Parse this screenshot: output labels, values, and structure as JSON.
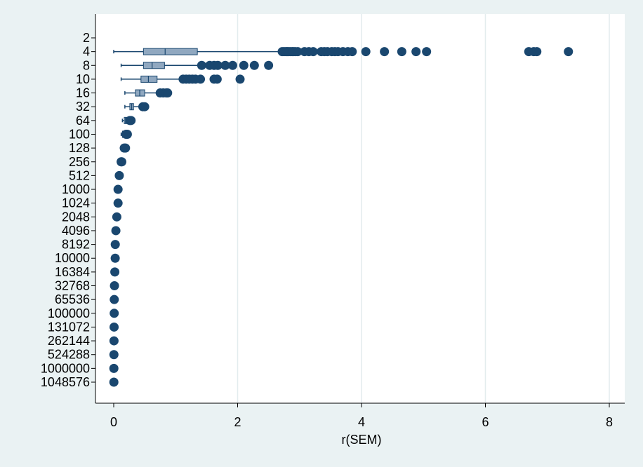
{
  "chart_data": {
    "type": "box",
    "orientation": "horizontal",
    "title": "",
    "xlabel": "r(SEM)",
    "ylabel": "",
    "xlim": [
      -0.3,
      8.3
    ],
    "xticks": [
      0,
      2,
      4,
      6,
      8
    ],
    "grid": "vertical",
    "legend": "none",
    "colors": {
      "background": "#eaf2f3",
      "plot_background": "#ffffff",
      "box_fill": "#90a8c0",
      "marker": "#1a476f",
      "grid": "#e3ecee",
      "axis": "#000000"
    },
    "categories": [
      "2",
      "4",
      "8",
      "10",
      "16",
      "32",
      "64",
      "100",
      "128",
      "256",
      "512",
      "1000",
      "1024",
      "2048",
      "4096",
      "8192",
      "10000",
      "16384",
      "32768",
      "65536",
      "100000",
      "131072",
      "262144",
      "524288",
      "1000000",
      "1048576"
    ],
    "boxes": [
      {
        "category": "2",
        "whisker_low": null,
        "q1": null,
        "median": null,
        "q3": null,
        "whisker_high": null,
        "outliers": []
      },
      {
        "category": "4",
        "whisker_low": 0.0,
        "q1": 0.48,
        "median": 0.83,
        "q3": 1.35,
        "whisker_high": 2.7,
        "outliers": [
          2.72,
          2.75,
          2.78,
          2.8,
          2.82,
          2.85,
          2.88,
          2.9,
          2.93,
          2.97,
          3.08,
          3.15,
          3.22,
          3.35,
          3.4,
          3.45,
          3.52,
          3.57,
          3.62,
          3.7,
          3.78,
          3.85,
          4.07,
          4.37,
          4.65,
          4.88,
          5.05,
          6.7,
          6.78,
          6.83,
          7.34
        ]
      },
      {
        "category": "8",
        "whisker_low": 0.12,
        "q1": 0.48,
        "median": 0.62,
        "q3": 0.82,
        "whisker_high": 1.37,
        "outliers": [
          1.42,
          1.55,
          1.62,
          1.68,
          1.8,
          1.92,
          2.1,
          2.27,
          2.5
        ]
      },
      {
        "category": "10",
        "whisker_low": 0.12,
        "q1": 0.44,
        "median": 0.56,
        "q3": 0.7,
        "whisker_high": 1.08,
        "outliers": [
          1.12,
          1.17,
          1.22,
          1.27,
          1.32,
          1.4,
          1.62,
          1.67,
          2.04
        ]
      },
      {
        "category": "16",
        "whisker_low": 0.18,
        "q1": 0.35,
        "median": 0.42,
        "q3": 0.5,
        "whisker_high": 0.72,
        "outliers": [
          0.75,
          0.8,
          0.85,
          0.87
        ]
      },
      {
        "category": "32",
        "whisker_low": 0.18,
        "q1": 0.26,
        "median": 0.29,
        "q3": 0.32,
        "whisker_high": 0.42,
        "outliers": [
          0.47,
          0.5
        ]
      },
      {
        "category": "64",
        "whisker_low": 0.14,
        "q1": 0.17,
        "median": 0.19,
        "q3": 0.21,
        "whisker_high": 0.24,
        "outliers": [
          0.26,
          0.28
        ]
      },
      {
        "category": "100",
        "whisker_low": 0.12,
        "q1": 0.14,
        "median": 0.15,
        "q3": 0.16,
        "whisker_high": 0.18,
        "outliers": [
          0.2,
          0.22
        ]
      },
      {
        "category": "128",
        "whisker_low": 0.12,
        "q1": 0.13,
        "median": 0.14,
        "q3": 0.15,
        "whisker_high": 0.16,
        "outliers": [
          0.17,
          0.19
        ]
      },
      {
        "category": "256",
        "whisker_low": 0.07,
        "q1": 0.08,
        "median": 0.09,
        "q3": 0.1,
        "whisker_high": 0.11,
        "outliers": [
          0.12,
          0.13
        ]
      },
      {
        "category": "512",
        "whisker_low": 0.06,
        "q1": 0.065,
        "median": 0.07,
        "q3": 0.075,
        "whisker_high": 0.08,
        "outliers": [
          0.09
        ]
      },
      {
        "category": "1000",
        "whisker_low": 0.04,
        "q1": 0.045,
        "median": 0.05,
        "q3": 0.055,
        "whisker_high": 0.06,
        "outliers": [
          0.07
        ]
      },
      {
        "category": "1024",
        "whisker_low": 0.04,
        "q1": 0.045,
        "median": 0.05,
        "q3": 0.055,
        "whisker_high": 0.06,
        "outliers": [
          0.07
        ]
      },
      {
        "category": "2048",
        "whisker_low": 0.025,
        "q1": 0.03,
        "median": 0.035,
        "q3": 0.04,
        "whisker_high": 0.045,
        "outliers": [
          0.05
        ]
      },
      {
        "category": "4096",
        "whisker_low": 0.02,
        "q1": 0.022,
        "median": 0.025,
        "q3": 0.028,
        "whisker_high": 0.03,
        "outliers": [
          0.035
        ]
      },
      {
        "category": "8192",
        "whisker_low": 0.012,
        "q1": 0.015,
        "median": 0.018,
        "q3": 0.02,
        "whisker_high": 0.022,
        "outliers": [
          0.025
        ]
      },
      {
        "category": "10000",
        "whisker_low": 0.012,
        "q1": 0.014,
        "median": 0.016,
        "q3": 0.018,
        "whisker_high": 0.02,
        "outliers": [
          0.024
        ]
      },
      {
        "category": "16384",
        "whisker_low": 0.01,
        "q1": 0.011,
        "median": 0.012,
        "q3": 0.013,
        "whisker_high": 0.015,
        "outliers": [
          0.018
        ]
      },
      {
        "category": "32768",
        "whisker_low": 0.006,
        "q1": 0.007,
        "median": 0.008,
        "q3": 0.009,
        "whisker_high": 0.01,
        "outliers": [
          0.012
        ]
      },
      {
        "category": "65536",
        "whisker_low": 0.004,
        "q1": 0.005,
        "median": 0.006,
        "q3": 0.007,
        "whisker_high": 0.008,
        "outliers": [
          0.009
        ]
      },
      {
        "category": "100000",
        "whisker_low": 0.003,
        "q1": 0.004,
        "median": 0.005,
        "q3": 0.006,
        "whisker_high": 0.007,
        "outliers": [
          0.008
        ]
      },
      {
        "category": "131072",
        "whisker_low": 0.003,
        "q1": 0.0035,
        "median": 0.004,
        "q3": 0.0045,
        "whisker_high": 0.005,
        "outliers": [
          0.006
        ]
      },
      {
        "category": "262144",
        "whisker_low": 0.002,
        "q1": 0.0025,
        "median": 0.003,
        "q3": 0.0035,
        "whisker_high": 0.004,
        "outliers": [
          0.0045
        ]
      },
      {
        "category": "524288",
        "whisker_low": 0.001,
        "q1": 0.0015,
        "median": 0.002,
        "q3": 0.0025,
        "whisker_high": 0.003,
        "outliers": [
          0.0035
        ]
      },
      {
        "category": "1000000",
        "whisker_low": 0.001,
        "q1": 0.0012,
        "median": 0.0015,
        "q3": 0.0018,
        "whisker_high": 0.002,
        "outliers": [
          0.0025
        ]
      },
      {
        "category": "1048576",
        "whisker_low": 0.001,
        "q1": 0.0012,
        "median": 0.0015,
        "q3": 0.0018,
        "whisker_high": 0.002,
        "outliers": [
          0.0025
        ]
      }
    ]
  }
}
